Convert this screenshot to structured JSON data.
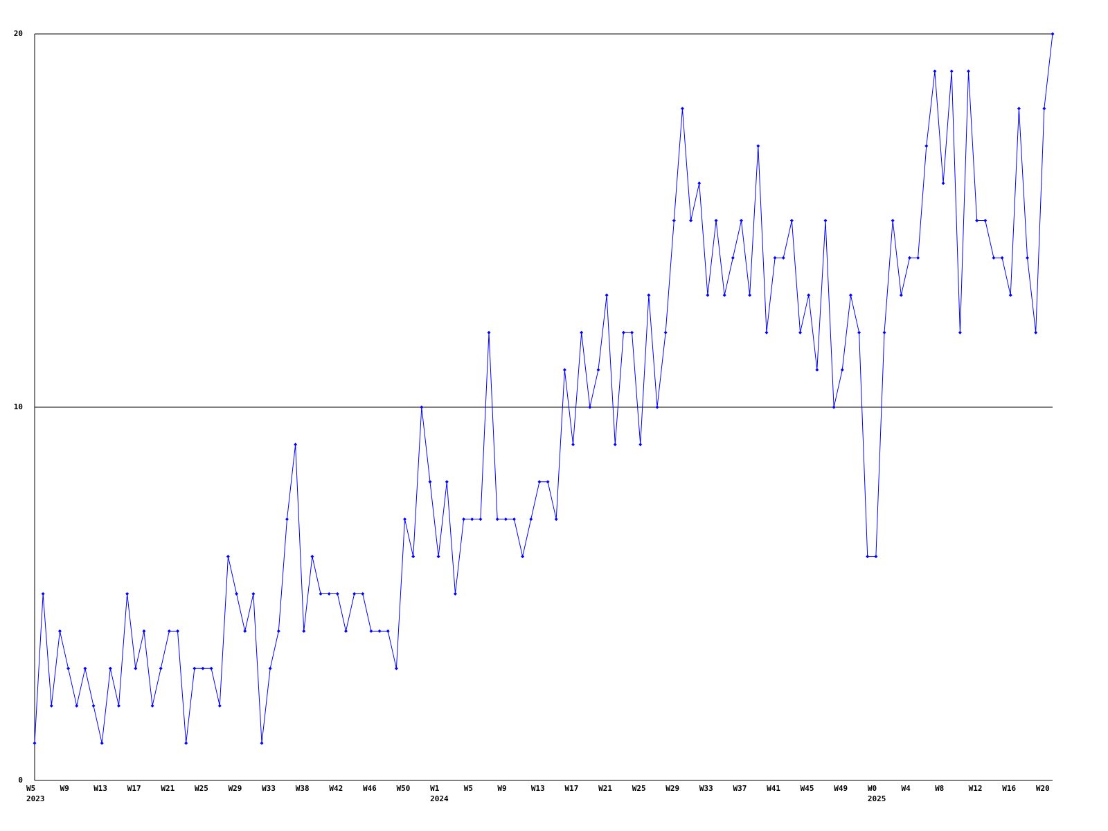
{
  "chart_data": {
    "type": "line",
    "categories": [
      "W5",
      null,
      null,
      null,
      "W9",
      null,
      null,
      null,
      "W13",
      null,
      null,
      null,
      "W17",
      null,
      null,
      null,
      "W21",
      null,
      null,
      null,
      "W25",
      null,
      null,
      null,
      "W29",
      null,
      null,
      null,
      "W33",
      null,
      null,
      null,
      "W38",
      null,
      null,
      null,
      "W42",
      null,
      null,
      null,
      "W46",
      null,
      null,
      null,
      "W50",
      null,
      null,
      null,
      "W1",
      null,
      null,
      null,
      "W5",
      null,
      null,
      null,
      "W9",
      null,
      null,
      null,
      "W13",
      null,
      null,
      null,
      "W17",
      null,
      null,
      null,
      "W21",
      null,
      null,
      null,
      "W25",
      null,
      null,
      null,
      "W29",
      null,
      null,
      null,
      "W33",
      null,
      null,
      null,
      "W37",
      null,
      null,
      null,
      "W41",
      null,
      null,
      null,
      "W45",
      null,
      null,
      null,
      "W49",
      null,
      null,
      null,
      "W0",
      null,
      null,
      null,
      "W4",
      null,
      null,
      null,
      "W8",
      null,
      null,
      null,
      "W12",
      null,
      null,
      null,
      "W16",
      null,
      null,
      null,
      "W20",
      null
    ],
    "category_years": [
      "2023",
      null,
      null,
      null,
      null,
      null,
      null,
      null,
      null,
      null,
      null,
      null,
      null,
      null,
      null,
      null,
      null,
      null,
      null,
      null,
      null,
      null,
      null,
      null,
      null,
      null,
      null,
      null,
      null,
      null,
      null,
      null,
      null,
      null,
      null,
      null,
      null,
      null,
      null,
      null,
      null,
      null,
      null,
      null,
      null,
      null,
      null,
      null,
      "2024",
      null,
      null,
      null,
      null,
      null,
      null,
      null,
      null,
      null,
      null,
      null,
      null,
      null,
      null,
      null,
      null,
      null,
      null,
      null,
      null,
      null,
      null,
      null,
      null,
      null,
      null,
      null,
      null,
      null,
      null,
      null,
      null,
      null,
      null,
      null,
      null,
      null,
      null,
      null,
      null,
      null,
      null,
      null,
      null,
      null,
      null,
      null,
      null,
      null,
      null,
      null,
      "2025",
      null,
      null,
      null,
      null,
      null,
      null,
      null,
      null,
      null,
      null,
      null,
      null,
      null,
      null,
      null,
      null,
      null,
      null,
      null,
      null,
      null
    ],
    "series": [
      {
        "color": "#0000ff",
        "values": [
          1,
          5,
          2,
          4,
          3,
          2,
          3,
          2,
          1,
          3,
          2,
          5,
          3,
          4,
          2,
          3,
          4,
          4,
          1,
          3,
          3,
          3,
          2,
          6,
          5,
          4,
          5,
          1,
          3,
          4,
          7,
          9,
          4,
          6,
          5,
          5,
          5,
          4,
          5,
          5,
          4,
          4,
          4,
          3,
          7,
          6,
          10,
          8,
          6,
          8,
          5,
          7,
          7,
          7,
          12,
          7,
          7,
          7,
          6,
          7,
          8,
          8,
          7,
          11,
          9,
          12,
          10,
          11,
          13,
          9,
          12,
          12,
          9,
          13,
          10,
          12,
          15,
          18,
          15,
          16,
          13,
          15,
          13,
          14,
          15,
          13,
          17,
          12,
          14,
          14,
          15,
          12,
          13,
          11,
          15,
          10,
          11,
          13,
          12,
          6,
          6,
          12,
          15,
          13,
          14,
          14,
          17,
          19,
          16,
          19,
          12,
          19,
          15,
          15,
          14,
          14,
          13,
          18,
          14,
          12,
          18,
          20
        ]
      }
    ],
    "ylim": [
      0,
      20
    ],
    "yticks": [
      0,
      10,
      20
    ],
    "grid": true
  }
}
